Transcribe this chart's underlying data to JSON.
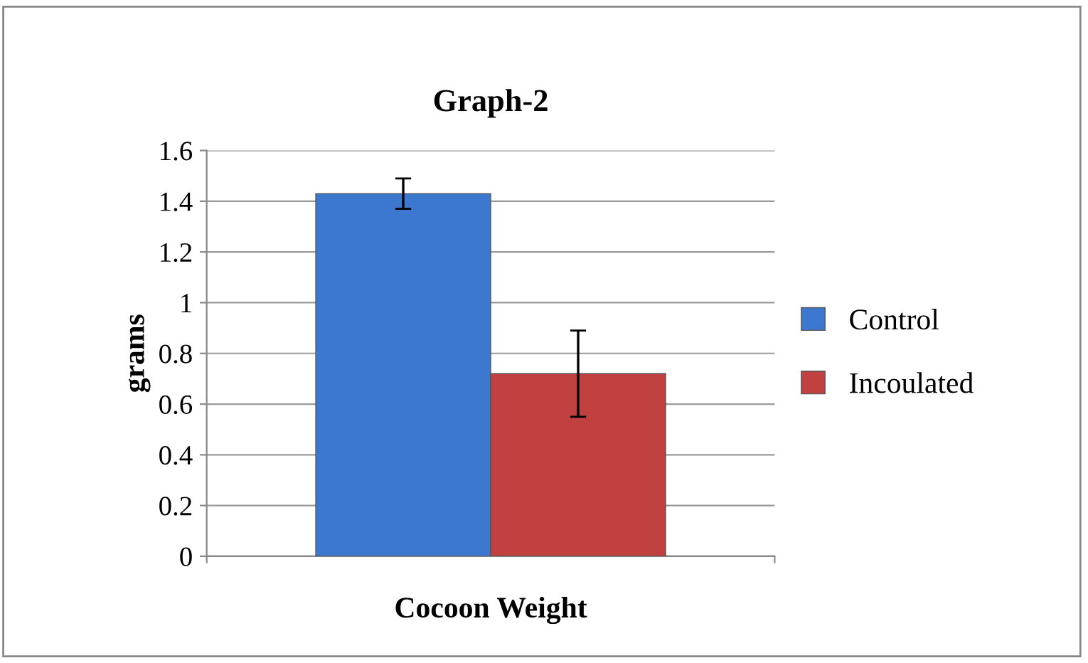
{
  "chart_data": {
    "type": "bar",
    "title": "Graph-2",
    "ylabel": "grams",
    "categories": [
      "Cocoon Weight"
    ],
    "series": [
      {
        "name": "Control",
        "color": "#3c78d0",
        "values": [
          1.43
        ],
        "errors": [
          0.06
        ]
      },
      {
        "name": "Incoulated",
        "color": "#c0413f",
        "values": [
          0.72
        ],
        "errors": [
          0.17
        ]
      }
    ],
    "ylim": [
      0,
      1.6
    ],
    "yticks": [
      0,
      0.2,
      0.4,
      0.6,
      0.8,
      1,
      1.2,
      1.4,
      1.6
    ],
    "grid": "y",
    "legend": "right"
  }
}
